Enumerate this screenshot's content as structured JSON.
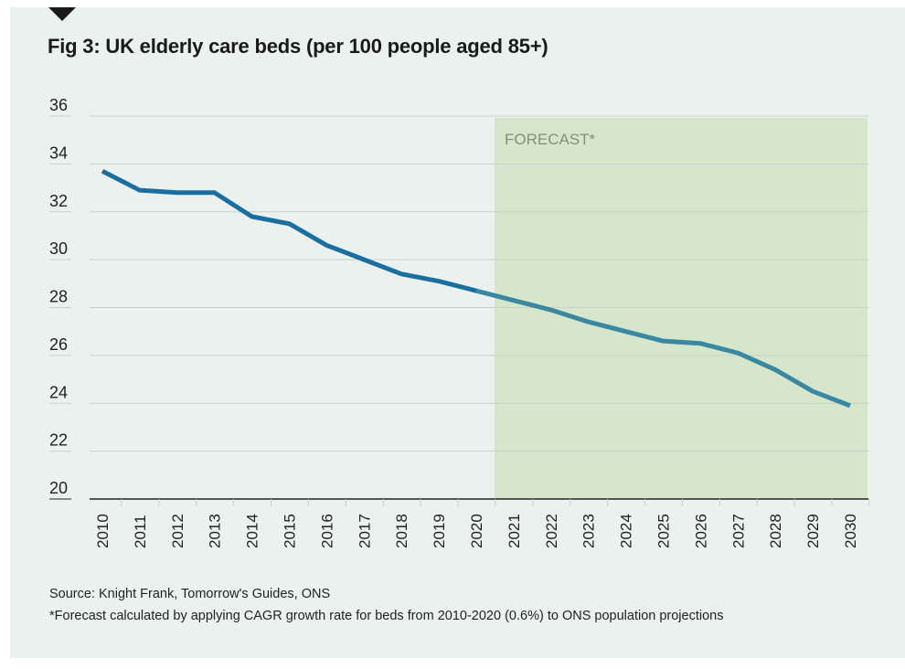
{
  "chart_data": {
    "type": "line",
    "title": "Fig 3: UK elderly care beds (per 100 people aged 85+)",
    "xlabel": "",
    "ylabel": "",
    "ylim": [
      20,
      36
    ],
    "yticks": [
      "20",
      "22",
      "24",
      "26",
      "28",
      "30",
      "32",
      "34",
      "36"
    ],
    "grid": true,
    "categories": [
      "2010",
      "2011",
      "2012",
      "2013",
      "2014",
      "2015",
      "2016",
      "2017",
      "2018",
      "2019",
      "2020",
      "2021",
      "2022",
      "2023",
      "2024",
      "2025",
      "2026",
      "2027",
      "2028",
      "2029",
      "2030"
    ],
    "series": [
      {
        "name": "Care beds per 100 people aged 85+",
        "values": [
          33.7,
          32.9,
          32.8,
          32.8,
          31.8,
          31.5,
          30.6,
          30.0,
          29.4,
          29.1,
          28.7,
          28.3,
          27.9,
          27.4,
          27.0,
          26.6,
          26.5,
          26.1,
          25.4,
          24.5,
          23.9
        ]
      }
    ],
    "forecast_region": {
      "label": "FORECAST*",
      "start": "2020",
      "end": "2030"
    },
    "colors": {
      "historical": "#1b6fa0",
      "forecast": "#3a87a2",
      "forecast_fill": "#d5e6cb",
      "background": "#ebf1ee"
    }
  },
  "footer": {
    "source": "Source: Knight Frank, Tomorrow's Guides, ONS",
    "note": "*Forecast calculated by applying CAGR growth rate for beds from 2010-2020 (0.6%) to ONS population projections"
  }
}
